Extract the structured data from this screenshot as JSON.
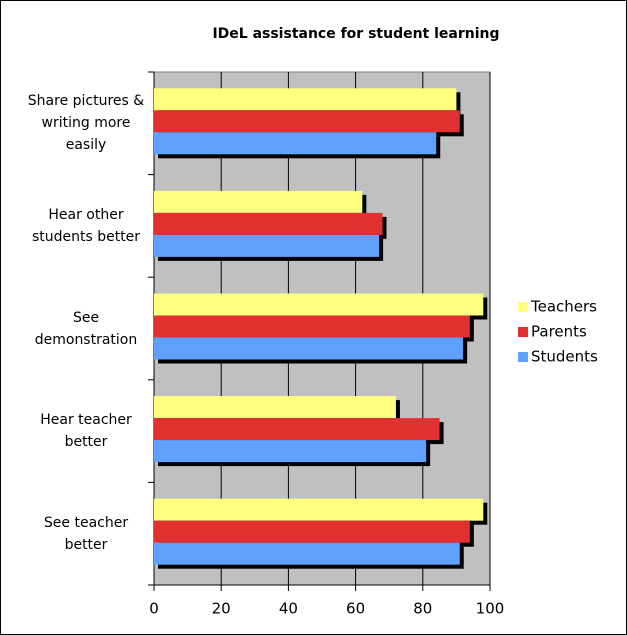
{
  "chart_data": {
    "type": "hbar",
    "title": "IDeL assistance for student learning",
    "categories": [
      "Share pictures & writing more easily",
      "Hear other students better",
      "See demonstration",
      "Hear teacher better",
      "See teacher better"
    ],
    "series": [
      {
        "name": "Teachers",
        "color": "#ffff80",
        "values": [
          90,
          62,
          98,
          72,
          98
        ]
      },
      {
        "name": "Parents",
        "color": "#e03030",
        "values": [
          91,
          68,
          94,
          85,
          94
        ]
      },
      {
        "name": "Students",
        "color": "#60a0ff",
        "values": [
          84,
          67,
          92,
          81,
          91
        ]
      }
    ],
    "xlim": [
      0,
      100
    ],
    "xticks": [
      0,
      20,
      40,
      60,
      80,
      100
    ],
    "grid": true,
    "legend": "right"
  }
}
